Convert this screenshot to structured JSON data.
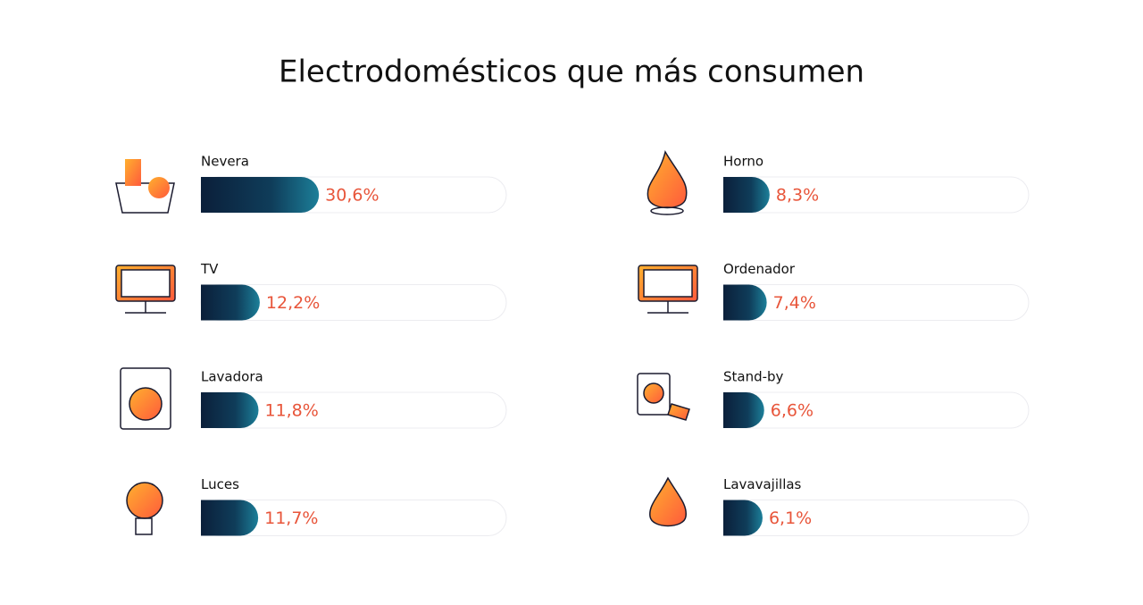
{
  "chart_data": {
    "type": "bar",
    "title": "Electrodomésticos que más consumen",
    "categories": [
      "Nevera",
      "TV",
      "Lavadora",
      "Luces",
      "Horno",
      "Ordenador",
      "Stand-by",
      "Lavavajillas"
    ],
    "values": [
      30.6,
      12.2,
      11.8,
      11.7,
      8.3,
      7.4,
      6.6,
      6.1
    ],
    "value_labels": [
      "30,6%",
      "12,2%",
      "11,8%",
      "11,7%",
      "8,3%",
      "7,4%",
      "6,6%",
      "6,1%"
    ],
    "color": "#0b1f3a",
    "label_color": "#e8553a"
  }
}
